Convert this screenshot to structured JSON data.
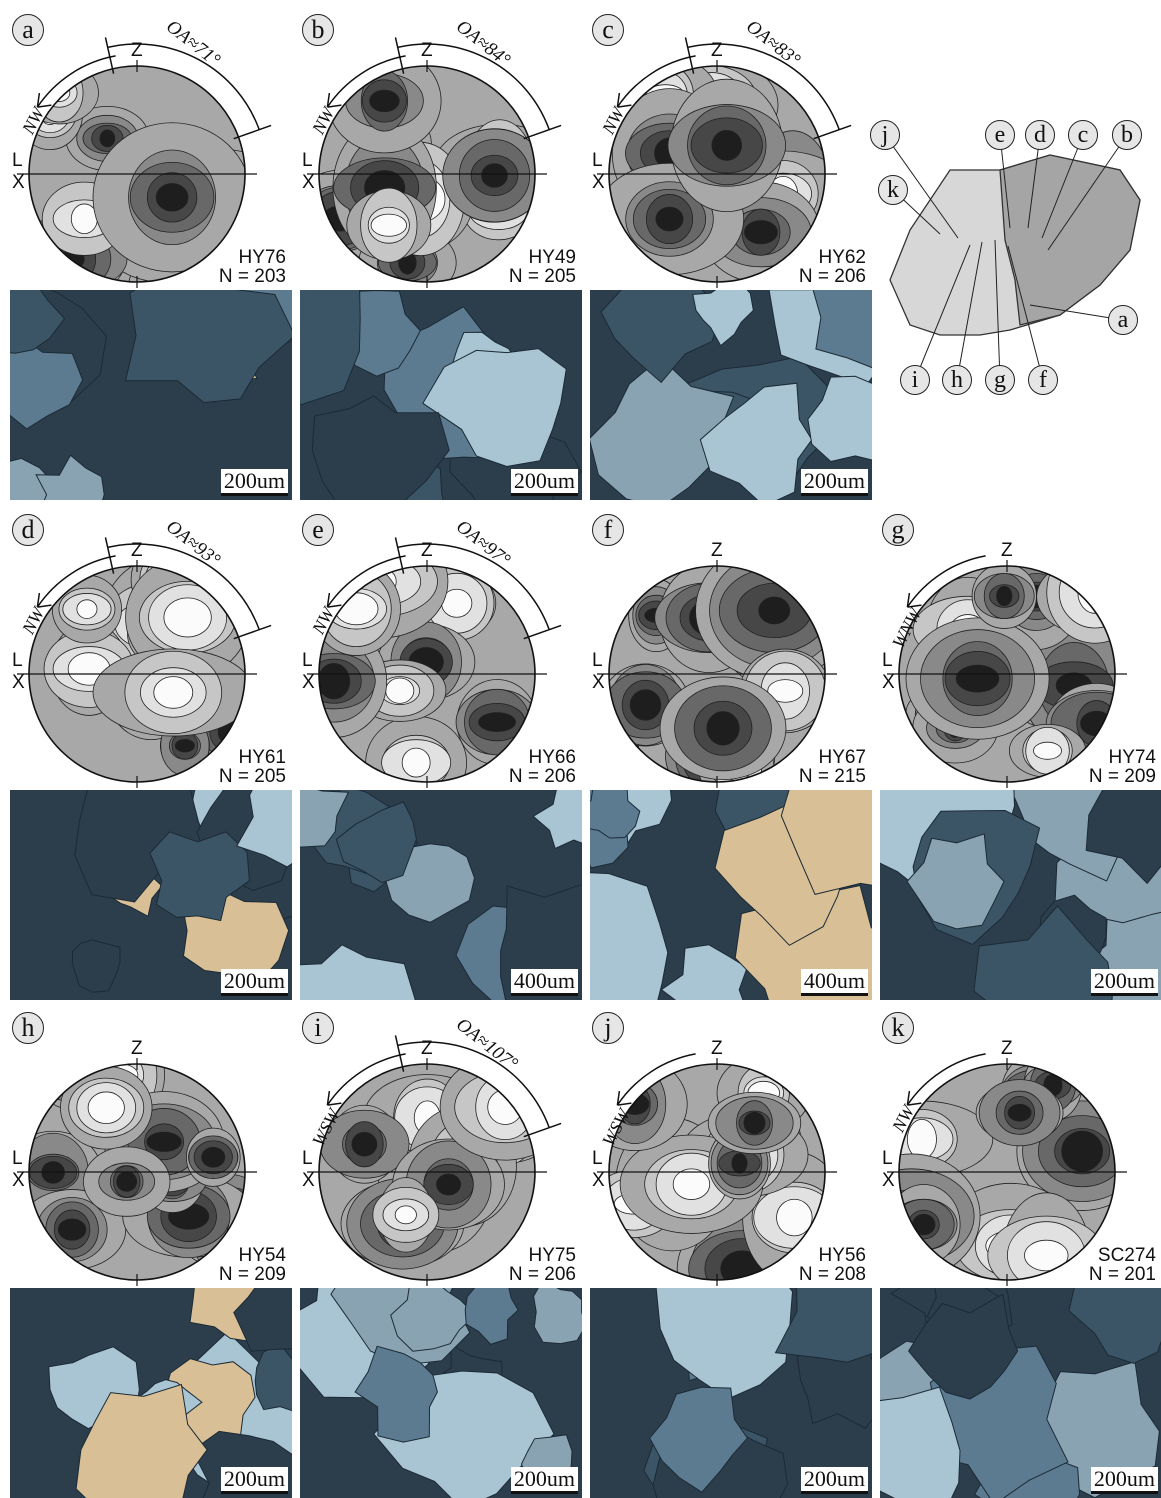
{
  "panels": [
    {
      "id": "a",
      "sample": "HY76",
      "n": "N = 203",
      "oa": "OA≈71°",
      "dir": "NW",
      "scale": "200um"
    },
    {
      "id": "b",
      "sample": "HY49",
      "n": "N = 205",
      "oa": "OA≈84°",
      "dir": "NW",
      "scale": "200um"
    },
    {
      "id": "c",
      "sample": "HY62",
      "n": "N = 206",
      "oa": "OA≈83°",
      "dir": "NW",
      "scale": "200um"
    },
    {
      "id": "d",
      "sample": "HY61",
      "n": "N = 205",
      "oa": "OA≈93°",
      "dir": "NW",
      "scale": "200um"
    },
    {
      "id": "e",
      "sample": "HY66",
      "n": "N = 206",
      "oa": "OA≈97°",
      "dir": "NW",
      "scale": "400um"
    },
    {
      "id": "f",
      "sample": "HY67",
      "n": "N = 215",
      "oa": "",
      "dir": "",
      "scale": "400um"
    },
    {
      "id": "g",
      "sample": "HY74",
      "n": "N = 209",
      "oa": "",
      "dir": "WNW",
      "scale": "200um"
    },
    {
      "id": "h",
      "sample": "HY54",
      "n": "N = 209",
      "oa": "",
      "dir": "",
      "scale": "200um"
    },
    {
      "id": "i",
      "sample": "HY75",
      "n": "N = 206",
      "oa": "OA≈107°",
      "dir": "WSW",
      "scale": "200um"
    },
    {
      "id": "j",
      "sample": "HY56",
      "n": "N = 208",
      "oa": "",
      "dir": "WSW",
      "scale": "200um"
    },
    {
      "id": "k",
      "sample": "SC274",
      "n": "N = 201",
      "oa": "",
      "dir": "NW",
      "scale": "200um"
    }
  ],
  "axes": {
    "z": "Z",
    "l": "L",
    "x": "X"
  },
  "map_labels": [
    "j",
    "e",
    "d",
    "c",
    "b",
    "k",
    "a",
    "i",
    "h",
    "g",
    "f"
  ],
  "colors": {
    "photo_dark": "#2c3e4c",
    "photo_mid": "#5c7b90",
    "photo_light": "#a9c4d2",
    "photo_tan": "#d8bf95"
  }
}
